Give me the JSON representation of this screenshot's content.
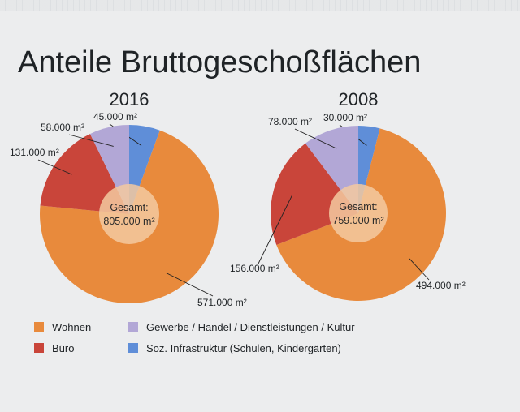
{
  "title": "Anteile Bruttogeschoßflächen",
  "colors": {
    "wohnen": "#e88a3c",
    "buero": "#c9453a",
    "gewerbe": "#b2a7d6",
    "sozial": "#5f8ed8",
    "center": "#f3c9a0"
  },
  "legend": [
    {
      "key": "wohnen",
      "label": "Wohnen"
    },
    {
      "key": "buero",
      "label": "Büro"
    },
    {
      "key": "gewerbe",
      "label": "Gewerbe / Handel / Dienstleistungen / Kultur"
    },
    {
      "key": "sozial",
      "label": "Soz. Infrastruktur (Schulen, Kindergärten)"
    }
  ],
  "chart_data": [
    {
      "type": "pie",
      "title": "2016",
      "center_label": [
        "Gesamt:",
        "805.000 m²"
      ],
      "total": 805000,
      "unit": "m²",
      "slices": [
        {
          "key": "sozial",
          "value": 45000,
          "label": "45.000 m²"
        },
        {
          "key": "wohnen",
          "value": 571000,
          "label": "571.000 m²"
        },
        {
          "key": "buero",
          "value": 131000,
          "label": "131.000 m²"
        },
        {
          "key": "gewerbe",
          "value": 58000,
          "label": "58.000 m²"
        }
      ]
    },
    {
      "type": "pie",
      "title": "2008",
      "center_label": [
        "Gesamt:",
        "759.000 m²"
      ],
      "total": 759000,
      "unit": "m²",
      "slices": [
        {
          "key": "sozial",
          "value": 30000,
          "label": "30.000 m²"
        },
        {
          "key": "wohnen",
          "value": 494000,
          "label": "494.000 m²"
        },
        {
          "key": "buero",
          "value": 156000,
          "label": "156.000 m²"
        },
        {
          "key": "gewerbe",
          "value": 78000,
          "label": "78.000 m²"
        }
      ]
    }
  ]
}
